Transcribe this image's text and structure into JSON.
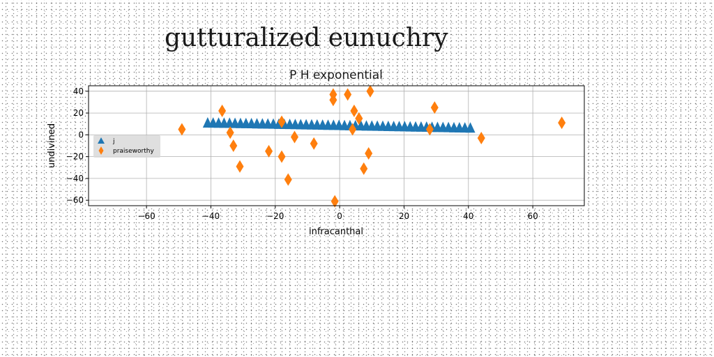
{
  "figure_title": "gutturalized eunuchry",
  "chart_data": {
    "type": "scatter",
    "title": "P H exponential",
    "xlabel": "infracanthal",
    "ylabel": "undivined",
    "xlim": [
      -78,
      76
    ],
    "ylim": [
      -65,
      45
    ],
    "xticks": [
      -60,
      -40,
      -20,
      0,
      20,
      40,
      60
    ],
    "yticks": [
      -60,
      -40,
      -20,
      0,
      20,
      40
    ],
    "xtick_labels": [
      "−60",
      "−40",
      "−20",
      "0",
      "20",
      "40",
      "60"
    ],
    "ytick_labels": [
      "−60",
      "−40",
      "−20",
      "0",
      "20",
      "40"
    ],
    "grid": true,
    "legend_position": "center-left",
    "series": [
      {
        "name": "j",
        "marker": "triangle",
        "color": "#1f77b4",
        "x": [
          -41,
          -39.3,
          -37.6,
          -35.9,
          -34.2,
          -32.5,
          -30.8,
          -29.1,
          -27.4,
          -25.7,
          -24,
          -22.3,
          -20.6,
          -18.9,
          -17.2,
          -15.5,
          -13.8,
          -12.1,
          -10.4,
          -8.7,
          -7,
          -5.3,
          -3.6,
          -1.9,
          -0.2,
          1.5,
          3.2,
          4.9,
          6.6,
          8.3,
          10,
          11.7,
          13.4,
          15.1,
          16.8,
          18.5,
          20.2,
          21.9,
          23.6,
          25.3,
          27,
          28.7,
          30.4,
          32.1,
          33.8,
          35.5,
          37.2,
          38.9,
          40.6
        ],
        "y": [
          10.5,
          10.4,
          10.3,
          10.2,
          10.2,
          10.1,
          10,
          9.9,
          9.8,
          9.7,
          9.6,
          9.5,
          9.4,
          9.3,
          9.2,
          9.1,
          9,
          8.9,
          8.8,
          8.7,
          8.6,
          8.5,
          8.4,
          8.3,
          8.2,
          8.1,
          8,
          7.9,
          7.8,
          7.7,
          7.6,
          7.5,
          7.4,
          7.3,
          7.2,
          7.1,
          7,
          6.9,
          6.8,
          6.7,
          6.6,
          6.5,
          6.4,
          6.3,
          6.2,
          6.1,
          6,
          5.9,
          5.8
        ]
      },
      {
        "name": "praiseworthy",
        "marker": "diamond",
        "color": "#ff7f0e",
        "x": [
          -49,
          -36.5,
          -34,
          -33,
          -31,
          -22,
          -18,
          -18,
          -16,
          -14,
          -8,
          -2,
          -2,
          -1.5,
          2.5,
          4,
          4.5,
          6,
          7.5,
          9,
          9.5,
          28,
          29.5,
          44,
          69
        ],
        "y": [
          5,
          22,
          2,
          -10,
          -29,
          -15,
          12,
          -20,
          -41,
          -2,
          -8,
          37,
          32,
          -61,
          37,
          5,
          22,
          15,
          -31,
          -17,
          40,
          5,
          25,
          -3,
          11
        ]
      }
    ]
  }
}
